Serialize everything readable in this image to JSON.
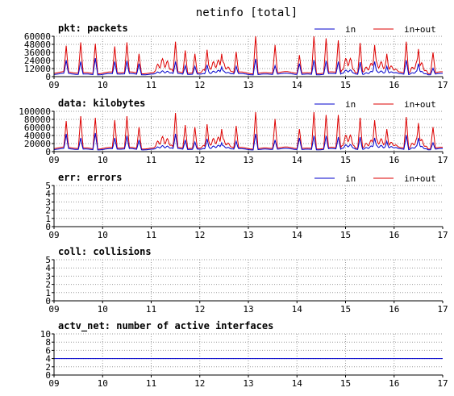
{
  "page_title": "netinfo [total]",
  "colors": {
    "in": "#0000cc",
    "inout": "#dd0000",
    "grid": "#9a9a9a",
    "axis": "#000000"
  },
  "chart_data": [
    {
      "id": "pkt",
      "type": "line",
      "title": "pkt: packets",
      "ylim": [
        0,
        60000
      ],
      "yticks": [
        "0",
        "12000",
        "24000",
        "36000",
        "48000",
        "60000"
      ],
      "xticks": [
        "09",
        "10",
        "11",
        "12",
        "13",
        "14",
        "15",
        "16",
        "17"
      ],
      "xlim": [
        9,
        17
      ],
      "legend": {
        "position": "top-right",
        "entries": [
          "in",
          "in+out"
        ]
      },
      "series": [
        {
          "name": "in",
          "color": "#0000cc",
          "baseline": 2500,
          "wave": 2500,
          "spikes": [
            [
              9.25,
              22000
            ],
            [
              9.55,
              20000
            ],
            [
              9.85,
              25000
            ],
            [
              10.25,
              20000
            ],
            [
              10.5,
              21000
            ],
            [
              10.75,
              17000
            ],
            [
              11.5,
              20000
            ],
            [
              11.7,
              14000
            ],
            [
              11.9,
              13000
            ],
            [
              12.15,
              15000
            ],
            [
              12.45,
              12000
            ],
            [
              12.75,
              13000
            ],
            [
              13.15,
              24000
            ],
            [
              13.55,
              14000
            ],
            [
              14.05,
              17000
            ],
            [
              14.35,
              22000
            ],
            [
              14.6,
              21000
            ],
            [
              14.85,
              20000
            ],
            [
              15.3,
              19000
            ],
            [
              15.6,
              20000
            ],
            [
              15.85,
              13000
            ],
            [
              16.25,
              22000
            ],
            [
              16.5,
              17000
            ],
            [
              16.8,
              10000
            ]
          ],
          "humps": [
            [
              11.05,
              11.45,
              5500
            ],
            [
              12.0,
              12.7,
              5000
            ],
            [
              14.9,
              15.2,
              6500
            ],
            [
              15.25,
              16.1,
              5000
            ],
            [
              16.3,
              16.7,
              5000
            ]
          ]
        },
        {
          "name": "in+out",
          "color": "#dd0000",
          "baseline": 4000,
          "wave": 3500,
          "spikes": [
            [
              9.25,
              42000
            ],
            [
              9.55,
              47000
            ],
            [
              9.85,
              45000
            ],
            [
              10.25,
              41000
            ],
            [
              10.5,
              47000
            ],
            [
              10.75,
              30000
            ],
            [
              11.5,
              48000
            ],
            [
              11.7,
              35000
            ],
            [
              11.9,
              30000
            ],
            [
              12.15,
              36000
            ],
            [
              12.45,
              30000
            ],
            [
              12.75,
              33000
            ],
            [
              13.15,
              59000
            ],
            [
              13.55,
              43000
            ],
            [
              14.05,
              28000
            ],
            [
              14.35,
              57000
            ],
            [
              14.6,
              53000
            ],
            [
              14.85,
              50000
            ],
            [
              15.3,
              46000
            ],
            [
              15.6,
              43000
            ],
            [
              15.85,
              30000
            ],
            [
              16.25,
              48000
            ],
            [
              16.5,
              37000
            ],
            [
              16.8,
              32000
            ]
          ],
          "humps": [
            [
              11.05,
              11.45,
              22000
            ],
            [
              12.0,
              12.7,
              18000
            ],
            [
              14.9,
              15.2,
              24000
            ],
            [
              15.25,
              16.1,
              17000
            ],
            [
              16.3,
              16.7,
              18000
            ]
          ]
        }
      ]
    },
    {
      "id": "data",
      "type": "line",
      "title": "data: kilobytes",
      "ylim": [
        0,
        100000
      ],
      "yticks": [
        "0",
        "20000",
        "40000",
        "60000",
        "80000",
        "100000"
      ],
      "xticks": [
        "09",
        "10",
        "11",
        "12",
        "13",
        "14",
        "15",
        "16",
        "17"
      ],
      "xlim": [
        9,
        17
      ],
      "legend": {
        "position": "top-right",
        "entries": [
          "in",
          "in+out"
        ]
      },
      "series": [
        {
          "name": "in",
          "color": "#0000cc",
          "baseline": 4000,
          "wave": 4000,
          "spikes": [
            [
              9.25,
              40000
            ],
            [
              9.55,
              30000
            ],
            [
              9.85,
              42000
            ],
            [
              10.25,
              30000
            ],
            [
              10.5,
              35000
            ],
            [
              10.75,
              25000
            ],
            [
              11.5,
              40000
            ],
            [
              11.7,
              25000
            ],
            [
              11.9,
              20000
            ],
            [
              12.15,
              28000
            ],
            [
              12.45,
              18000
            ],
            [
              12.75,
              22000
            ],
            [
              13.15,
              40000
            ],
            [
              13.55,
              25000
            ],
            [
              14.05,
              30000
            ],
            [
              14.35,
              35000
            ],
            [
              14.6,
              35000
            ],
            [
              14.85,
              32000
            ],
            [
              15.3,
              32000
            ],
            [
              15.6,
              30000
            ],
            [
              15.85,
              22000
            ],
            [
              16.25,
              37000
            ],
            [
              16.5,
              30000
            ],
            [
              16.8,
              18000
            ]
          ],
          "humps": [
            [
              11.05,
              11.45,
              10000
            ],
            [
              12.0,
              12.7,
              9000
            ],
            [
              14.9,
              15.2,
              12000
            ],
            [
              15.25,
              16.1,
              10000
            ],
            [
              16.3,
              16.7,
              9000
            ]
          ]
        },
        {
          "name": "in+out",
          "color": "#dd0000",
          "baseline": 6000,
          "wave": 5500,
          "spikes": [
            [
              9.25,
              70000
            ],
            [
              9.55,
              82000
            ],
            [
              9.85,
              78000
            ],
            [
              10.25,
              72000
            ],
            [
              10.5,
              82000
            ],
            [
              10.75,
              55000
            ],
            [
              11.5,
              90000
            ],
            [
              11.7,
              60000
            ],
            [
              11.9,
              55000
            ],
            [
              12.15,
              62000
            ],
            [
              12.45,
              50000
            ],
            [
              12.75,
              58000
            ],
            [
              13.15,
              92000
            ],
            [
              13.55,
              75000
            ],
            [
              14.05,
              50000
            ],
            [
              14.35,
              92000
            ],
            [
              14.6,
              85000
            ],
            [
              14.85,
              85000
            ],
            [
              15.3,
              78000
            ],
            [
              15.6,
              72000
            ],
            [
              15.85,
              50000
            ],
            [
              16.25,
              80000
            ],
            [
              16.5,
              65000
            ],
            [
              16.8,
              55000
            ]
          ],
          "humps": [
            [
              11.05,
              11.45,
              30000
            ],
            [
              12.0,
              12.7,
              26000
            ],
            [
              14.9,
              15.2,
              36000
            ],
            [
              15.25,
              16.1,
              24000
            ],
            [
              16.3,
              16.7,
              26000
            ]
          ]
        }
      ]
    },
    {
      "id": "err",
      "type": "line",
      "title": "err: errors",
      "ylim": [
        0,
        5
      ],
      "yticks": [
        "0",
        "1",
        "2",
        "3",
        "4",
        "5"
      ],
      "xticks": [
        "09",
        "10",
        "11",
        "12",
        "13",
        "14",
        "15",
        "16",
        "17"
      ],
      "xlim": [
        9,
        17
      ],
      "legend": {
        "position": "top-right",
        "entries": [
          "in",
          "in+out"
        ]
      },
      "series": [
        {
          "name": "in",
          "color": "#0000cc",
          "constant": 0
        },
        {
          "name": "in+out",
          "color": "#dd0000",
          "constant": 0
        }
      ]
    },
    {
      "id": "coll",
      "type": "line",
      "title": "coll: collisions",
      "ylim": [
        0,
        5
      ],
      "yticks": [
        "0",
        "1",
        "2",
        "3",
        "4",
        "5"
      ],
      "xticks": [
        "09",
        "10",
        "11",
        "12",
        "13",
        "14",
        "15",
        "16",
        "17"
      ],
      "xlim": [
        9,
        17
      ],
      "legend": {
        "position": "none",
        "entries": []
      },
      "series": [
        {
          "name": "",
          "color": "#0000cc",
          "constant": 0
        }
      ]
    },
    {
      "id": "actv",
      "type": "line",
      "title": "actv_net: number of active interfaces",
      "ylim": [
        0,
        10
      ],
      "yticks": [
        "0",
        "2",
        "4",
        "6",
        "8",
        "10"
      ],
      "xticks": [
        "09",
        "10",
        "11",
        "12",
        "13",
        "14",
        "15",
        "16",
        "17"
      ],
      "xlim": [
        9,
        17
      ],
      "legend": {
        "position": "none",
        "entries": []
      },
      "series": [
        {
          "name": "",
          "color": "#0000cc",
          "constant": 4
        }
      ]
    }
  ]
}
